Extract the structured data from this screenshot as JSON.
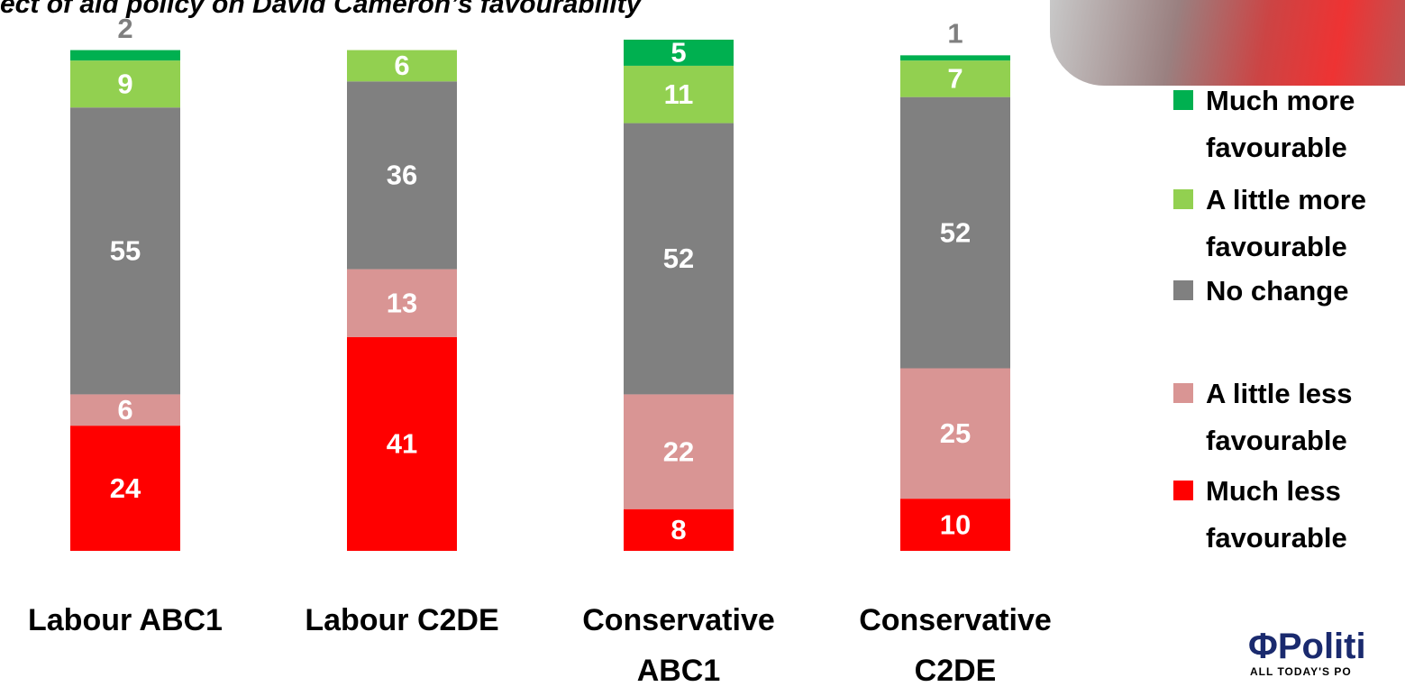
{
  "chart_data": {
    "type": "stacked_bar",
    "title": "ect of aid policy on David Cameron’s favourability",
    "categories": [
      "Labour ABC1",
      "Labour C2DE",
      "Conservative ABC1",
      "Conservative C2DE"
    ],
    "series": [
      {
        "name": "Much less favourable",
        "color": "#ff0000",
        "values": [
          24,
          41,
          8,
          10
        ]
      },
      {
        "name": "A little less favourable",
        "color": "#d99594",
        "values": [
          6,
          13,
          22,
          25
        ]
      },
      {
        "name": "No change",
        "color": "#808080",
        "values": [
          55,
          36,
          52,
          52
        ]
      },
      {
        "name": "A little more favourable",
        "color": "#92d050",
        "values": [
          9,
          6,
          11,
          7
        ]
      },
      {
        "name": "Much more favourable",
        "color": "#00b050",
        "values": [
          2,
          null,
          5,
          1
        ]
      }
    ]
  },
  "logo": {
    "name": "ΦPoliti",
    "tagline": "ALL TODAY'S PO"
  }
}
